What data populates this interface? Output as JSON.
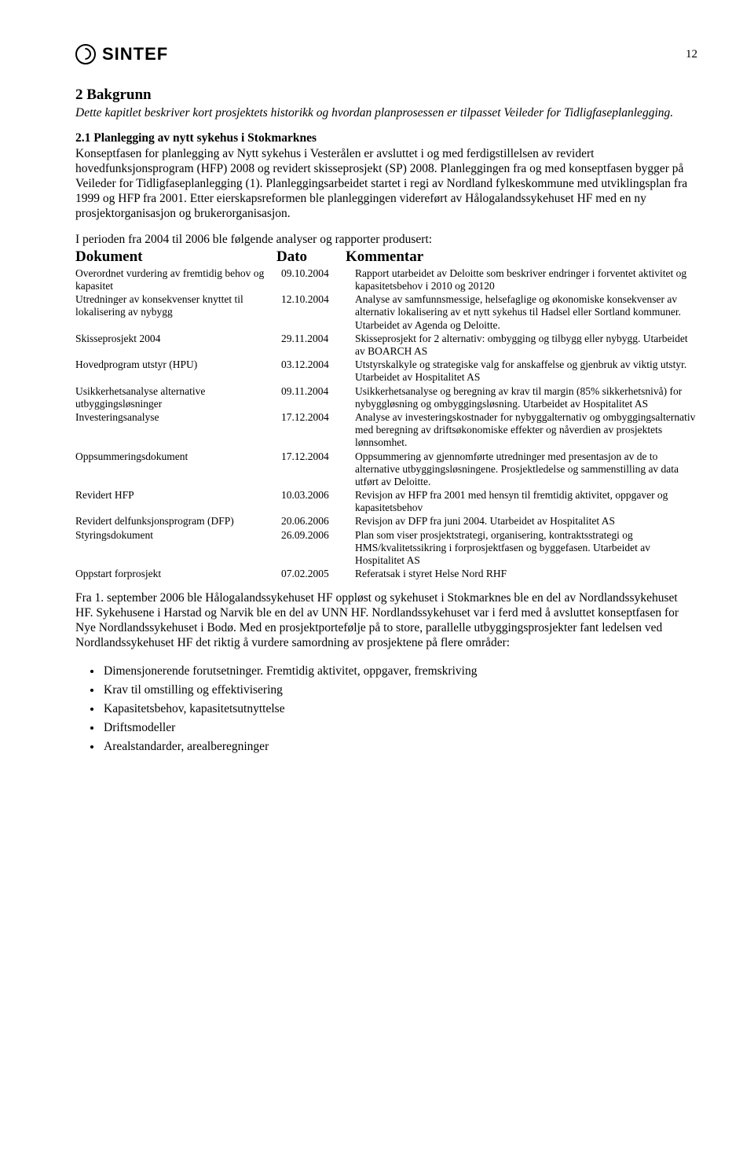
{
  "header": {
    "logo_text": "SINTEF",
    "page_number": "12"
  },
  "section": {
    "title": "2  Bakgrunn",
    "intro": "Dette kapitlet beskriver kort prosjektets historikk og hvordan planprosessen er tilpasset Veileder for Tidligfaseplanlegging.",
    "sub_title": "2.1 Planlegging av nytt sykehus i Stokmarknes",
    "body": "Konseptfasen for planlegging av Nytt sykehus i Vesterålen er avsluttet i og med ferdigstillelsen av revidert hovedfunksjonsprogram (HFP) 2008 og revidert skisseprosjekt (SP) 2008. Planleggingen fra og med konseptfasen bygger på Veileder for Tidligfaseplanlegging (1). Planleggingsarbeidet startet i regi av Nordland fylkeskommune med utviklingsplan fra 1999 og HFP fra 2001. Etter eierskapsreformen ble planleggingen videreført av Hålogalandssykehuset HF med en ny prosjektorganisasjon og brukerorganisasjon.",
    "lead": "I perioden fra 2004 til 2006 ble følgende analyser og rapporter produsert:"
  },
  "table": {
    "headers": {
      "doc": "Dokument",
      "date": "Dato",
      "comment": "Kommentar"
    },
    "rows": [
      {
        "doc": "Overordnet vurdering av fremtidig behov og kapasitet",
        "date": "09.10.2004",
        "comment": "Rapport utarbeidet av Deloitte som beskriver endringer i forventet aktivitet og kapasitetsbehov i 2010 og 20120"
      },
      {
        "doc": "Utredninger av konsekvenser knyttet til lokalisering av nybygg",
        "date": "12.10.2004",
        "comment": "Analyse av samfunnsmessige, helsefaglige og økonomiske konsekvenser av alternativ lokalisering av et nytt sykehus til Hadsel eller Sortland kommuner. Utarbeidet av Agenda og Deloitte."
      },
      {
        "doc": "Skisseprosjekt 2004",
        "date": "29.11.2004",
        "comment": "Skisseprosjekt for 2 alternativ: ombygging og tilbygg eller nybygg. Utarbeidet av BOARCH AS"
      },
      {
        "doc": "Hovedprogram utstyr (HPU)",
        "date": "03.12.2004",
        "comment": "Utstyrskalkyle og strategiske valg for anskaffelse og gjenbruk av viktig utstyr. Utarbeidet av Hospitalitet AS"
      },
      {
        "doc": "Usikkerhetsanalyse alternative utbyggingsløsninger",
        "date": "09.11.2004",
        "comment": "Usikkerhetsanalyse og beregning av krav til margin (85% sikkerhetsnivå) for nybyggløsning og ombyggingsløsning. Utarbeidet av Hospitalitet AS"
      },
      {
        "doc": "Investeringsanalyse",
        "date": "17.12.2004",
        "comment": "Analyse av investeringskostnader for nybyggalternativ og ombyggingsalternativ med beregning av driftsøkonomiske effekter og nåverdien av prosjektets lønnsomhet."
      },
      {
        "doc": "Oppsummeringsdokument",
        "date": "17.12.2004",
        "comment": "Oppsummering av gjennomførte utredninger med presentasjon av de to alternative utbyggingsløsningene. Prosjektledelse og sammenstilling av data utført av Deloitte."
      },
      {
        "doc": "Revidert HFP",
        "date": "10.03.2006",
        "comment": "Revisjon av HFP fra 2001 med hensyn til fremtidig aktivitet, oppgaver og kapasitetsbehov"
      },
      {
        "doc": "Revidert delfunksjonsprogram (DFP)",
        "date": "20.06.2006",
        "comment": "Revisjon av DFP fra juni 2004. Utarbeidet av Hospitalitet AS"
      },
      {
        "doc": "Styringsdokument",
        "date": "26.09.2006",
        "comment": "Plan som viser prosjektstrategi, organisering, kontraktsstrategi og HMS/kvalitetssikring i forprosjektfasen og byggefasen. Utarbeidet av Hospitalitet AS"
      },
      {
        "doc": "Oppstart forprosjekt",
        "date": "07.02.2005",
        "comment": "Referatsak i styret Helse Nord RHF"
      }
    ]
  },
  "after_table": "Fra 1. september 2006 ble Hålogalandssykehuset HF oppløst og sykehuset i Stokmarknes ble en del av Nordlandssykehuset HF. Sykehusene i Harstad og Narvik ble en del av UNN HF. Nordlandssykehuset var i ferd med å avsluttet konseptfasen for Nye Nordlandssykehuset i Bodø. Med en prosjektportefølje på to store, parallelle utbyggingsprosjekter fant ledelsen ved Nordlandssykehuset HF det riktig å vurdere samordning av prosjektene på flere områder:",
  "bullets": [
    "Dimensjonerende forutsetninger. Fremtidig aktivitet, oppgaver, fremskriving",
    "Krav til omstilling og effektivisering",
    "Kapasitetsbehov, kapasitetsutnyttelse",
    "Driftsmodeller",
    "Arealstandarder, arealberegninger"
  ]
}
